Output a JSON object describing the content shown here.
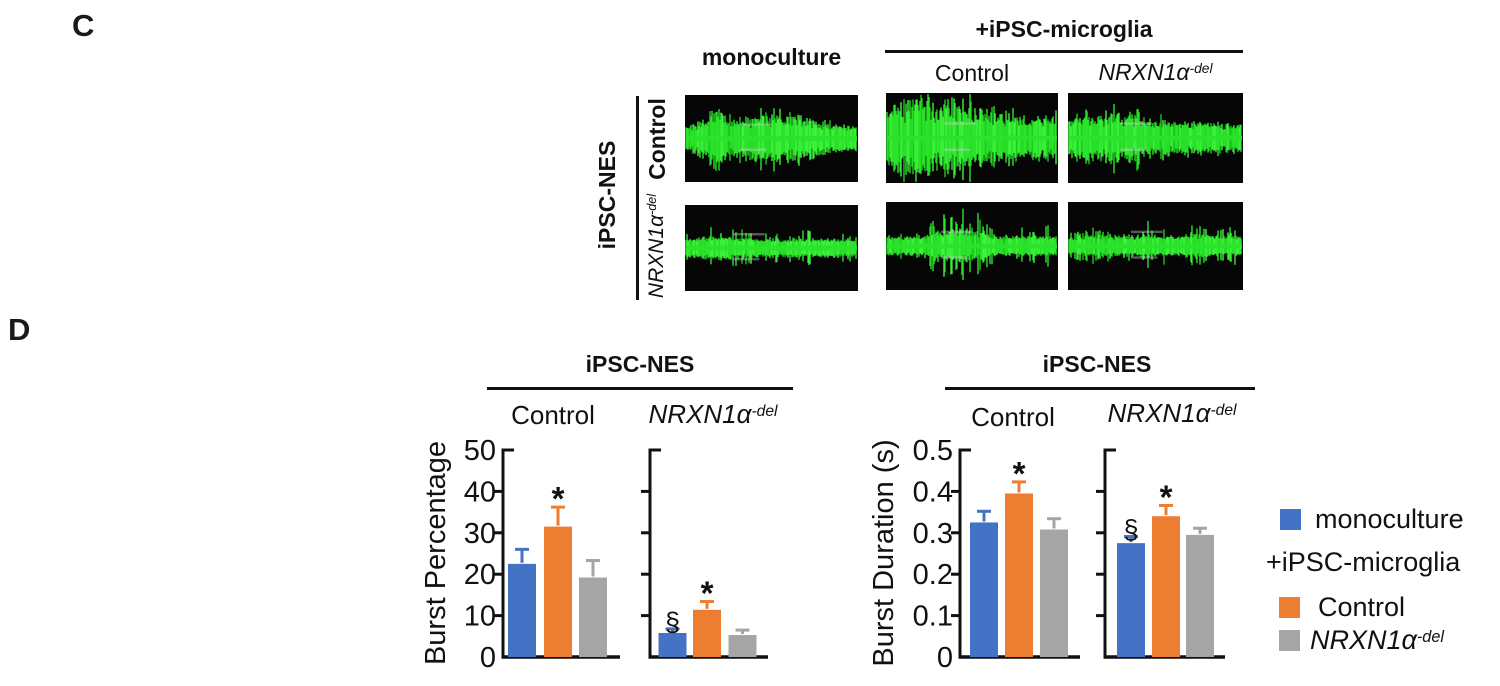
{
  "figure": {
    "panel_c_label": "C",
    "panel_d_label": "D"
  },
  "panel_c": {
    "columns": {
      "monoculture": "monoculture",
      "coculture_header": "+iPSC-microglia",
      "coculture_control": "Control",
      "coculture_nrxn_main": "NRXN1α",
      "coculture_nrxn_sup": "-del"
    },
    "rows": {
      "axis_label": "iPSC-NES",
      "row1": "Control",
      "row2_main": "NRXN1α",
      "row2_sup": "-del"
    },
    "trace_color": "#2be32b",
    "trace_bg": "#060606",
    "traces": [
      {
        "name": "control-monoculture",
        "row": "Control",
        "col": "monoculture",
        "seed": 7,
        "style": {
          "base": 6,
          "core": 24,
          "spikeProb": 0.3,
          "spikeAmp": 12
        },
        "envelope": [
          [
            0,
            0.2
          ],
          [
            0.08,
            0.45
          ],
          [
            0.18,
            0.75
          ],
          [
            0.28,
            0.55
          ],
          [
            0.38,
            0.65
          ],
          [
            0.48,
            0.9
          ],
          [
            0.58,
            0.7
          ],
          [
            0.68,
            0.75
          ],
          [
            0.78,
            0.4
          ],
          [
            0.9,
            0.28
          ],
          [
            1,
            0.25
          ]
        ]
      },
      {
        "name": "control-microglia-control",
        "row": "Control",
        "col": "+iPSC-microglia Control",
        "seed": 13,
        "style": {
          "base": 7,
          "core": 30,
          "spikeProb": 0.32,
          "spikeAmp": 14
        },
        "envelope": [
          [
            0,
            0.55
          ],
          [
            0.06,
            0.9
          ],
          [
            0.15,
            1.0
          ],
          [
            0.3,
            0.85
          ],
          [
            0.42,
            0.95
          ],
          [
            0.55,
            0.75
          ],
          [
            0.7,
            0.5
          ],
          [
            0.85,
            0.45
          ],
          [
            1,
            0.5
          ]
        ]
      },
      {
        "name": "control-microglia-nrxn1adel",
        "row": "Control",
        "col": "+iPSC-microglia NRXN1α-del",
        "seed": 21,
        "style": {
          "base": 6,
          "core": 24,
          "spikeProb": 0.28,
          "spikeAmp": 13
        },
        "envelope": [
          [
            0,
            0.5
          ],
          [
            0.1,
            0.65
          ],
          [
            0.22,
            0.8
          ],
          [
            0.35,
            0.75
          ],
          [
            0.5,
            0.5
          ],
          [
            0.65,
            0.4
          ],
          [
            0.8,
            0.35
          ],
          [
            1,
            0.35
          ]
        ]
      },
      {
        "name": "nrxn1adel-monoculture",
        "row": "NRXN1α-del",
        "col": "monoculture",
        "seed": 5,
        "style": {
          "base": 5,
          "core": 11,
          "spikeProb": 0.22,
          "spikeAmp": 20
        },
        "envelope": [
          [
            0,
            0.35
          ],
          [
            0.1,
            0.5
          ],
          [
            0.25,
            0.55
          ],
          [
            0.4,
            0.4
          ],
          [
            0.55,
            0.35
          ],
          [
            0.7,
            0.45
          ],
          [
            0.85,
            0.4
          ],
          [
            1,
            0.3
          ]
        ]
      },
      {
        "name": "nrxn1adel-microglia-control",
        "row": "NRXN1α-del",
        "col": "+iPSC-microglia Control",
        "seed": 17,
        "style": {
          "base": 5,
          "core": 13,
          "spikeProb": 0.24,
          "spikeAmp": 22
        },
        "envelope": [
          [
            0,
            0.3
          ],
          [
            0.2,
            0.35
          ],
          [
            0.3,
            0.8
          ],
          [
            0.42,
            1.0
          ],
          [
            0.52,
            0.9
          ],
          [
            0.62,
            0.45
          ],
          [
            0.75,
            0.35
          ],
          [
            0.88,
            0.5
          ],
          [
            1,
            0.35
          ]
        ]
      },
      {
        "name": "nrxn1adel-microglia-nrxn1adel",
        "row": "NRXN1α-del",
        "col": "+iPSC-microglia NRXN1α-del",
        "seed": 29,
        "style": {
          "base": 5,
          "core": 11,
          "spikeProb": 0.22,
          "spikeAmp": 19
        },
        "envelope": [
          [
            0,
            0.35
          ],
          [
            0.15,
            0.55
          ],
          [
            0.3,
            0.4
          ],
          [
            0.45,
            0.65
          ],
          [
            0.6,
            0.45
          ],
          [
            0.75,
            0.55
          ],
          [
            0.9,
            0.5
          ],
          [
            1,
            0.4
          ]
        ]
      }
    ]
  },
  "chart_data": [
    {
      "type": "bar",
      "title": "iPSC-NES",
      "ylabel": "Burst Percentage",
      "xlabel": "",
      "ylim": [
        0,
        50
      ],
      "yticks": [
        0,
        10,
        20,
        30,
        40,
        50
      ],
      "grid": false,
      "legend_position": "shared-right",
      "bar_colors": [
        "#4472C4",
        "#ED7D31",
        "#A5A5A5"
      ],
      "series_names": [
        "monoculture",
        "+iPSC-microglia Control",
        "+iPSC-microglia NRXN1α-del"
      ],
      "groups": [
        {
          "label": "Control",
          "label_main": "Control",
          "label_sup": "",
          "italic": false,
          "bars": [
            {
              "series": "monoculture",
              "value": 22.5,
              "error": 3.5,
              "annotation": ""
            },
            {
              "series": "+iPSC-microglia Control",
              "value": 31.5,
              "error": 4.7,
              "annotation": "*"
            },
            {
              "series": "+iPSC-microglia NRXN1α-del",
              "value": 19.2,
              "error": 4.1,
              "annotation": ""
            }
          ]
        },
        {
          "label": "NRXN1α-del",
          "label_main": "NRXN1α",
          "label_sup": "-del",
          "italic": true,
          "bars": [
            {
              "series": "monoculture",
              "value": 5.8,
              "error": 1.0,
              "annotation": "§"
            },
            {
              "series": "+iPSC-microglia Control",
              "value": 11.4,
              "error": 2.0,
              "annotation": "*"
            },
            {
              "series": "+iPSC-microglia NRXN1α-del",
              "value": 5.3,
              "error": 1.2,
              "annotation": ""
            }
          ]
        }
      ]
    },
    {
      "type": "bar",
      "title": "iPSC-NES",
      "ylabel": "Burst Duration (s)",
      "xlabel": "",
      "ylim": [
        0,
        0.5
      ],
      "yticks": [
        0,
        0.1,
        0.2,
        0.3,
        0.4,
        0.5
      ],
      "grid": false,
      "legend_position": "shared-right",
      "bar_colors": [
        "#4472C4",
        "#ED7D31",
        "#A5A5A5"
      ],
      "series_names": [
        "monoculture",
        "+iPSC-microglia Control",
        "+iPSC-microglia NRXN1α-del"
      ],
      "groups": [
        {
          "label": "Control",
          "label_main": "Control",
          "label_sup": "",
          "italic": false,
          "bars": [
            {
              "series": "monoculture",
              "value": 0.325,
              "error": 0.027,
              "annotation": ""
            },
            {
              "series": "+iPSC-microglia Control",
              "value": 0.395,
              "error": 0.028,
              "annotation": "*"
            },
            {
              "series": "+iPSC-microglia NRXN1α-del",
              "value": 0.308,
              "error": 0.026,
              "annotation": ""
            }
          ]
        },
        {
          "label": "NRXN1α-del",
          "label_main": "NRXN1α",
          "label_sup": "-del",
          "italic": true,
          "bars": [
            {
              "series": "monoculture",
              "value": 0.275,
              "error": 0.016,
              "annotation": "§"
            },
            {
              "series": "+iPSC-microglia Control",
              "value": 0.34,
              "error": 0.026,
              "annotation": "*"
            },
            {
              "series": "+iPSC-microglia NRXN1α-del",
              "value": 0.295,
              "error": 0.016,
              "annotation": ""
            }
          ]
        }
      ]
    }
  ],
  "panel_d": {
    "legend": {
      "items": [
        {
          "label": "monoculture",
          "swatch": "#4472C4",
          "header": false,
          "italic": false
        },
        {
          "label": "+iPSC-microglia",
          "swatch": null,
          "header": true,
          "italic": false
        },
        {
          "label": "Control",
          "swatch": "#ED7D31",
          "header": false,
          "italic": false
        },
        {
          "label_main": "NRXN1α",
          "label_sup": "-del",
          "swatch": "#A5A5A5",
          "header": false,
          "italic": true
        }
      ]
    }
  }
}
